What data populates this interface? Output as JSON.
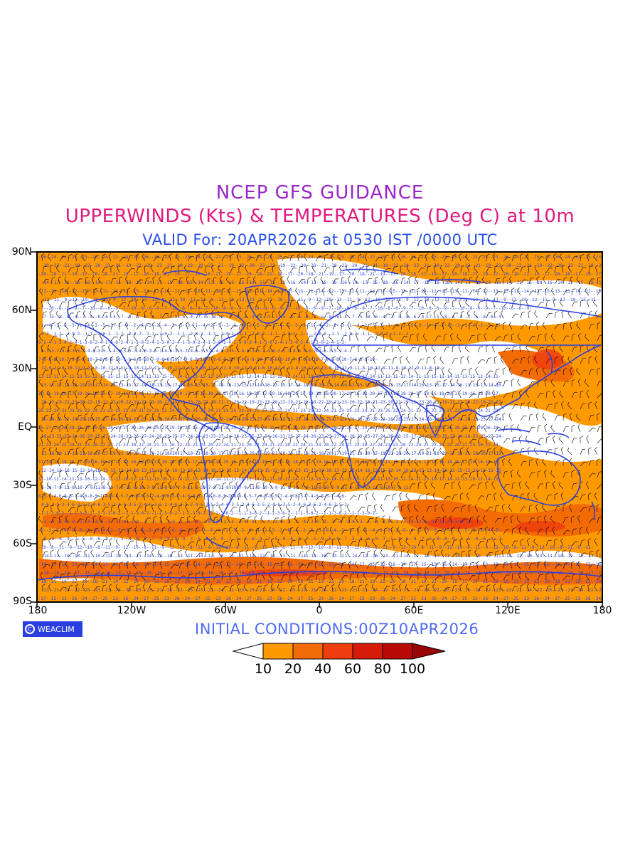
{
  "header": {
    "title_line1": "NCEP GFS GUIDANCE",
    "title_line2": "UPPERWINDS (Kts) & TEMPERATURES (Deg C) at 10m",
    "title_line3": "VALID For: 20APR2026 at 0530 IST /0000 UTC"
  },
  "map": {
    "lat_labels": [
      "90N",
      "60N",
      "30N",
      "EQ",
      "30S",
      "60S",
      "90S"
    ],
    "lon_labels": [
      "180",
      "120W",
      "60W",
      "0",
      "60E",
      "120E",
      "180"
    ],
    "colors": {
      "land_outline": "#2a3fe0",
      "barb": "#000000",
      "temp_text": "#2a3fe0"
    }
  },
  "footer": {
    "logo_text": "WEACLIM",
    "logo_icon": "copyright-icon",
    "initial_conditions": "INITIAL CONDITIONS:00Z10APR2026"
  },
  "legend": {
    "labels": [
      "10",
      "20",
      "40",
      "60",
      "80",
      "100"
    ],
    "colors": [
      "#ffffff",
      "#ff9900",
      "#f26b05",
      "#ee3d0e",
      "#d61b0b",
      "#b90a08",
      "#9a0606"
    ]
  }
}
